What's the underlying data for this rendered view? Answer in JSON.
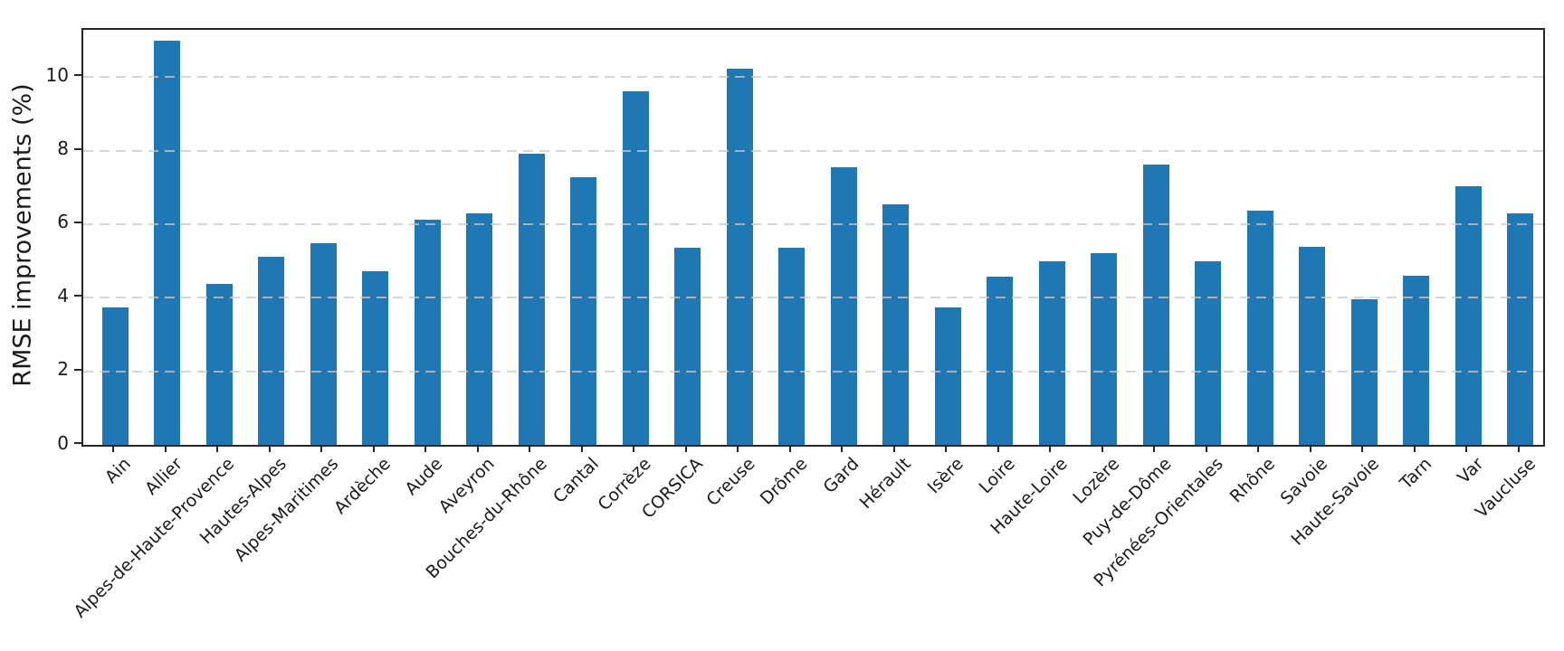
{
  "chart_data": {
    "type": "bar",
    "title": "",
    "xlabel": "",
    "ylabel": "RMSE improvements (%)",
    "legend_position": "none",
    "grid": "horizontal-dashed",
    "categories": [
      "Ain",
      "Allier",
      "Alpes-de-Haute-Provence",
      "Hautes-Alpes",
      "Alpes-Maritimes",
      "Ardèche",
      "Aude",
      "Aveyron",
      "Bouches-du-Rhône",
      "Cantal",
      "Corrèze",
      "CORSICA",
      "Creuse",
      "Drôme",
      "Gard",
      "Hérault",
      "Isère",
      "Loire",
      "Haute-Loire",
      "Lozère",
      "Puy-de-Dôme",
      "Pyrénées-Orientales",
      "Rhône",
      "Savoie",
      "Haute-Savoie",
      "Tarn",
      "Var",
      "Vaucluse"
    ],
    "values": [
      3.73,
      11.0,
      4.37,
      5.11,
      5.48,
      4.71,
      6.13,
      6.29,
      7.92,
      7.27,
      9.61,
      5.35,
      10.22,
      5.35,
      7.55,
      6.54,
      3.75,
      4.57,
      4.98,
      5.22,
      7.62,
      5.0,
      6.37,
      5.39,
      3.96,
      4.6,
      7.03,
      6.29
    ],
    "yticks": [
      0,
      2,
      4,
      6,
      8,
      10
    ],
    "ylim": [
      0,
      11.3
    ],
    "bar_color": "#1f77b4",
    "grid_color": "#c9c9c9",
    "axis_color": "#262626",
    "text_color": "#1a1a1a"
  }
}
